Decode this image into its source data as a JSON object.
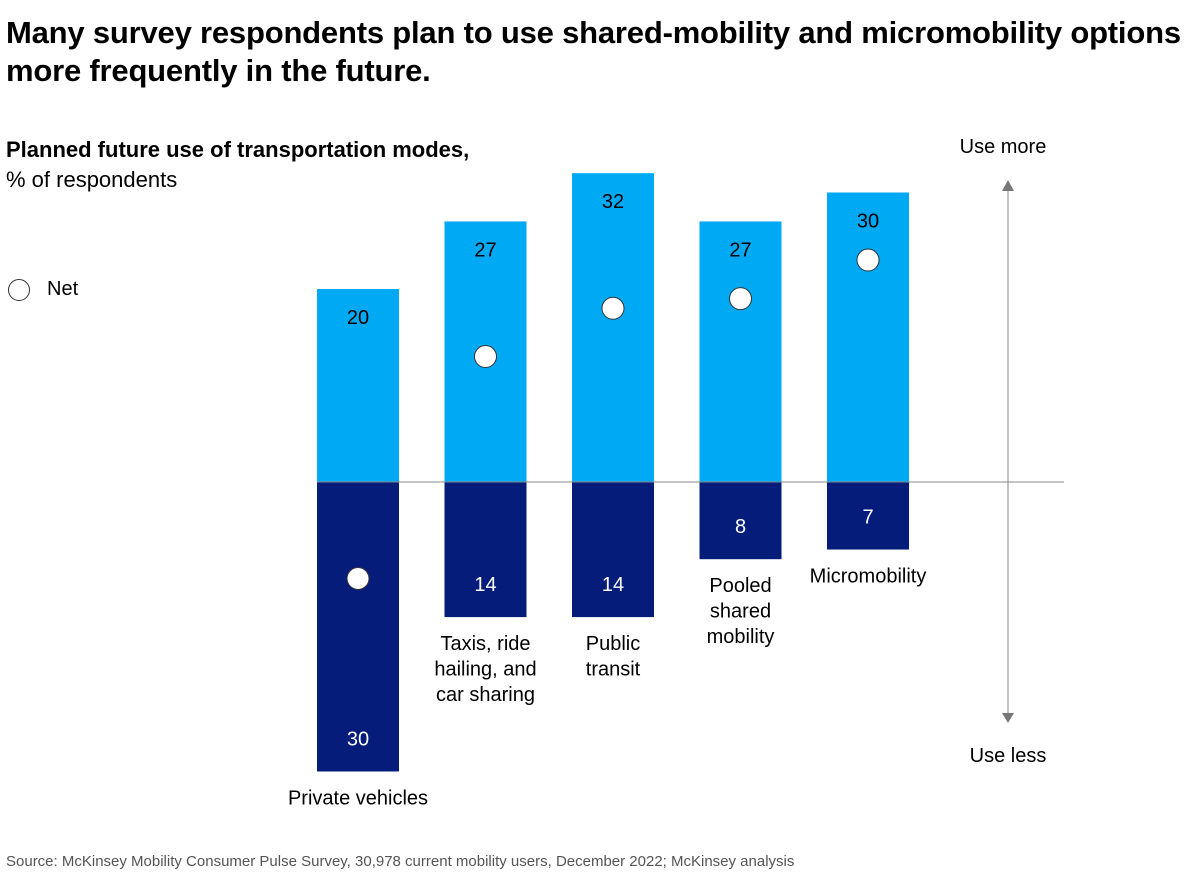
{
  "title": "Many survey respondents plan to use shared-mobility and micromobility options more frequently in the future.",
  "subtitle": {
    "bold": "Planned future use of transportation modes,",
    "light": "% of respondents"
  },
  "legend": {
    "net_label": "Net"
  },
  "axis": {
    "top_label": "Use more",
    "bottom_label": "Use less"
  },
  "source": "Source: McKinsey Mobility Consumer Pulse Survey, 30,978 current mobility users, December 2022; McKinsey analysis",
  "colors": {
    "use_more": "#00a9f4",
    "use_less": "#051c7a",
    "axis": "#888888"
  },
  "chart_data": {
    "type": "bar",
    "title": "Planned future use of transportation modes, % of respondents",
    "categories": [
      "Private vehicles",
      "Taxis, ride hailing, and car sharing",
      "Public transit",
      "Pooled shared mobility",
      "Micromobility"
    ],
    "category_lines": [
      [
        "Private vehicles"
      ],
      [
        "Taxis, ride",
        "hailing, and",
        "car sharing"
      ],
      [
        "Public",
        "transit"
      ],
      [
        "Pooled",
        "shared",
        "mobility"
      ],
      [
        "Micromobility"
      ]
    ],
    "series": [
      {
        "name": "Use more",
        "values": [
          20,
          27,
          32,
          27,
          30
        ]
      },
      {
        "name": "Use less",
        "values": [
          30,
          14,
          14,
          8,
          7
        ]
      },
      {
        "name": "Net",
        "values": [
          -10,
          13,
          18,
          19,
          23
        ]
      }
    ],
    "ylim": [
      -30,
      32
    ],
    "grid": false,
    "legend": "left",
    "xlabel": "",
    "ylabel": "% of respondents"
  }
}
